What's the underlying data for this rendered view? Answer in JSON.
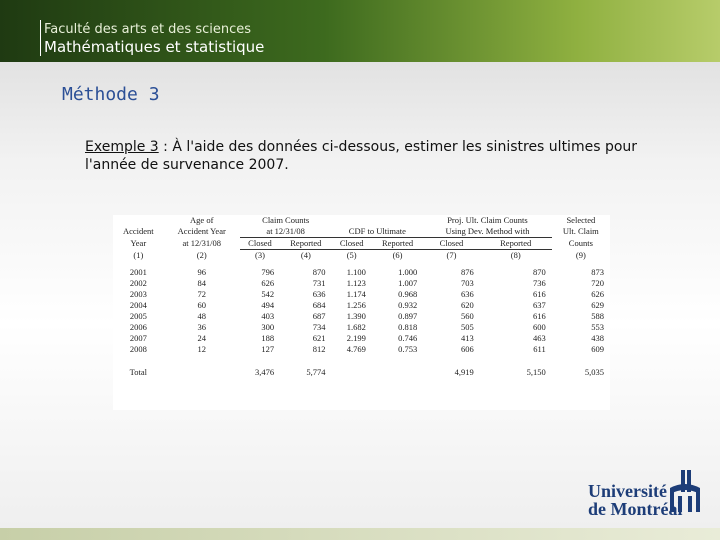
{
  "header": {
    "faculty": "Faculté des arts et des sciences",
    "department": "Mathématiques et statistique"
  },
  "title": "Méthode 3",
  "body": {
    "label": "Exemple 3",
    "text": " : À l'aide des données ci-dessous, estimer les sinistres ultimes pour l'année de survenance 2007."
  },
  "table": {
    "head_rows": [
      [
        "Age of",
        "Claim Counts",
        "Proj. Ult. Claim Counts",
        "Selected"
      ],
      [
        "Accident",
        "Accident Year",
        "at 12/31/08",
        "CDF to Ultimate",
        "Using Dev. Method with",
        "Ult. Claim"
      ],
      [
        "Year",
        "at 12/31/08",
        "Closed",
        "Reported",
        "Closed",
        "Reported",
        "Closed",
        "Reported",
        "Counts"
      ],
      [
        "(1)",
        "(2)",
        "(3)",
        "(4)",
        "(5)",
        "(6)",
        "(7)",
        "(8)",
        "(9)"
      ]
    ],
    "rows": [
      [
        "2001",
        "96",
        "796",
        "870",
        "1.100",
        "1.000",
        "876",
        "870",
        "873"
      ],
      [
        "2002",
        "84",
        "626",
        "731",
        "1.123",
        "1.007",
        "703",
        "736",
        "720"
      ],
      [
        "2003",
        "72",
        "542",
        "636",
        "1.174",
        "0.968",
        "636",
        "616",
        "626"
      ],
      [
        "2004",
        "60",
        "494",
        "684",
        "1.256",
        "0.932",
        "620",
        "637",
        "629"
      ],
      [
        "2005",
        "48",
        "403",
        "687",
        "1.390",
        "0.897",
        "560",
        "616",
        "588"
      ],
      [
        "2006",
        "36",
        "300",
        "734",
        "1.682",
        "0.818",
        "505",
        "600",
        "553"
      ],
      [
        "2007",
        "24",
        "188",
        "621",
        "2.199",
        "0.746",
        "413",
        "463",
        "438"
      ],
      [
        "2008",
        "12",
        "127",
        "812",
        "4.769",
        "0.753",
        "606",
        "611",
        "609"
      ]
    ],
    "total": [
      "Total",
      null,
      "3,476",
      "5,774",
      null,
      null,
      "4,919",
      "5,150",
      "5,035"
    ]
  },
  "logo": {
    "line1": "Université",
    "line2": "de Montréal"
  }
}
